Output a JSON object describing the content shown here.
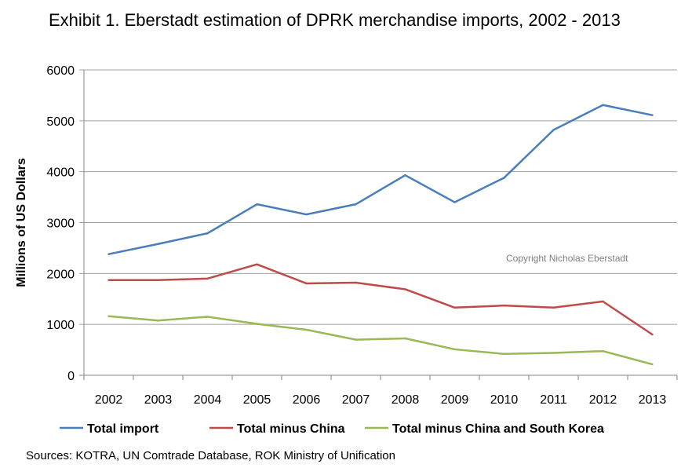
{
  "chart_data": {
    "type": "line",
    "title": "Exhibit 1. Eberstadt estimation of DPRK merchandise imports, 2002 - 2013",
    "xlabel": "",
    "ylabel": "Millions of US Dollars",
    "ylim": [
      0,
      6000
    ],
    "yticks": [
      "0",
      "1000",
      "2000",
      "3000",
      "4000",
      "5000",
      "6000"
    ],
    "categories": [
      "2002",
      "2003",
      "2004",
      "2005",
      "2006",
      "2007",
      "2008",
      "2009",
      "2010",
      "2011",
      "2012",
      "2013"
    ],
    "grid": true,
    "legend_position": "bottom",
    "series": [
      {
        "name": "Total import",
        "color": "#4a7ebb",
        "values": [
          2380,
          2580,
          2790,
          3360,
          3160,
          3360,
          3930,
          3400,
          3880,
          4820,
          5310,
          5110
        ]
      },
      {
        "name": "Total minus China",
        "color": "#be4b48",
        "values": [
          1870,
          1870,
          1900,
          2180,
          1805,
          1820,
          1690,
          1330,
          1370,
          1330,
          1450,
          800
        ]
      },
      {
        "name": "Total minus China and South Korea",
        "color": "#98b954",
        "values": [
          1160,
          1075,
          1150,
          1010,
          895,
          700,
          725,
          510,
          420,
          440,
          475,
          215
        ]
      }
    ],
    "annotation": "Copyright Nicholas Eberstadt",
    "sources": "Sources: KOTRA, UN Comtrade Database, ROK Ministry of Unification"
  }
}
